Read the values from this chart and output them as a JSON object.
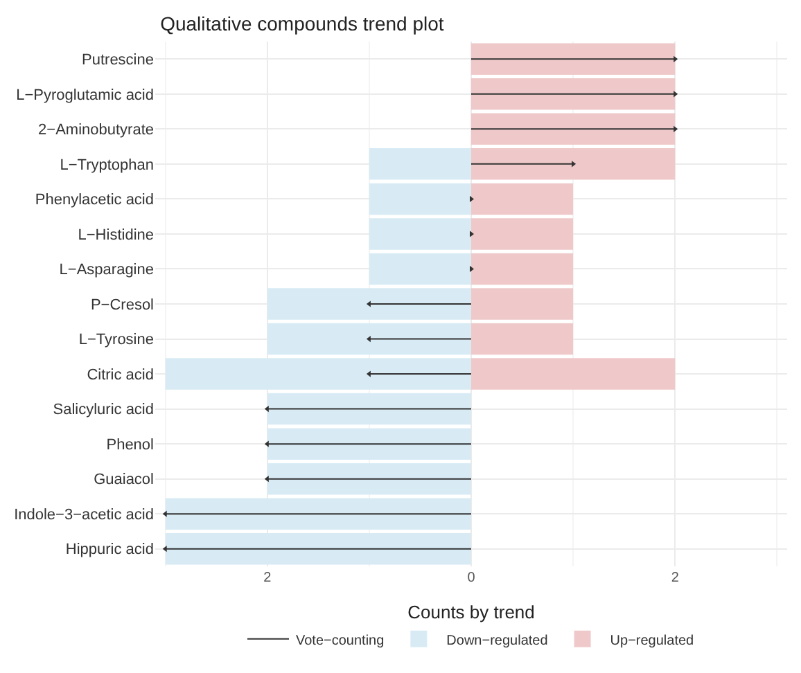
{
  "chart_data": {
    "type": "bar",
    "orientation": "horizontal",
    "stacked": true,
    "title": "Qualitative compounds trend plot",
    "xlabel": "Counts by trend",
    "categories": [
      "Putrescine",
      "L−Pyroglutamic acid",
      "2−Aminobutyrate",
      "L−Tryptophan",
      "Phenylacetic acid",
      "L−Histidine",
      "L−Asparagine",
      "P−Cresol",
      "L−Tyrosine",
      "Citric acid",
      "Salicyluric acid",
      "Phenol",
      "Guaiacol",
      "Indole−3−acetic acid",
      "Hippuric acid"
    ],
    "series": [
      {
        "name": "Vote−counting",
        "type": "lollipop",
        "color": "#333333",
        "marker": "triangle",
        "values": [
          2,
          2,
          2,
          1,
          0,
          0,
          0,
          -1,
          -1,
          -1,
          -2,
          -2,
          -2,
          -3,
          -3
        ]
      },
      {
        "name": "Down−regulated",
        "color": "#d8ebf5",
        "values": [
          0,
          0,
          0,
          -1,
          -1,
          -1,
          -1,
          -2,
          -2,
          -3,
          -2,
          -2,
          -2,
          -3,
          -3
        ]
      },
      {
        "name": "Up−regulated",
        "color": "#efc9c9",
        "values": [
          2,
          2,
          2,
          2,
          1,
          1,
          1,
          1,
          1,
          2,
          0,
          0,
          0,
          0,
          0
        ]
      }
    ],
    "xlim": [
      -3.1,
      3.1
    ],
    "xticks": [
      {
        "value": -2,
        "label": "2"
      },
      0,
      2
    ],
    "grid": true,
    "legend": "bottom"
  }
}
